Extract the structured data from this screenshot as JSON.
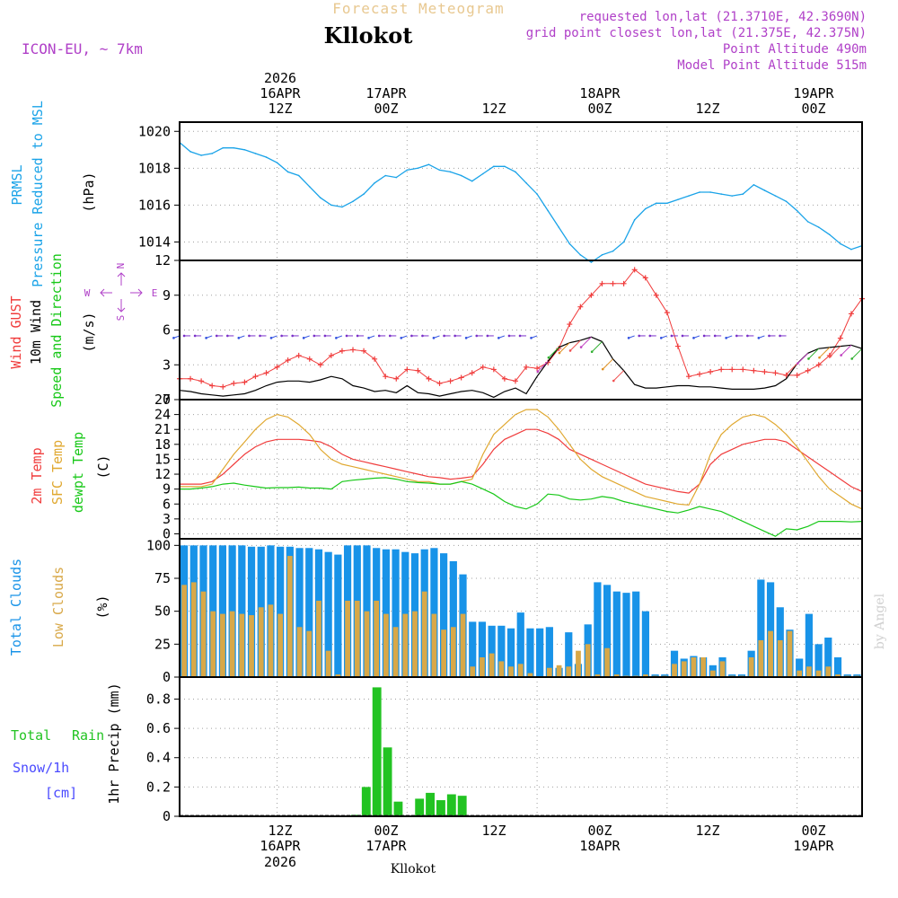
{
  "header": {
    "supertitle": "Forecast Meteogram",
    "location": "Kllokot",
    "model": "ICON-EU, ~ 7km",
    "info": [
      "requested lon,lat (21.3710E, 42.3690N)",
      "grid point closest lon,lat (21.375E, 42.375N)",
      "Point Altitude 490m",
      "Model Point Altitude 515m"
    ]
  },
  "axis_top": [
    "2026",
    "16APR",
    "12Z",
    "17APR",
    "00Z",
    "12Z",
    "18APR",
    "00Z",
    "12Z",
    "19APR",
    "00Z"
  ],
  "axis_bottom": [
    "12Z",
    "16APR",
    "2026",
    "00Z",
    "17APR",
    "12Z",
    "00Z",
    "18APR",
    "12Z",
    "00Z",
    "19APR"
  ],
  "footer_label": "Kllokot",
  "watermark": "by Angel",
  "colors": {
    "pressure": "#1aa3e8",
    "gust": "#f03c3c",
    "wind": "#000000",
    "temp2m": "#f03c3c",
    "sfc": "#e0a830",
    "dew": "#18c818",
    "total_cloud": "#1893e8",
    "low_cloud": "#d8a848",
    "rain": "#22c322",
    "snow": "#4a4aff",
    "title": "#000000",
    "supertitle": "#e8c890",
    "info": "#b040c8"
  },
  "panel_labels": {
    "pressure": [
      "PRMSL",
      "Pressure Reduced to MSL",
      "(hPa)"
    ],
    "wind": [
      "Wind GUST",
      "10m Wind",
      "Speed and Direction",
      "(m/s)"
    ],
    "compass": [
      "N",
      "S",
      "W",
      "E"
    ],
    "temp": [
      "2m Temp",
      "SFC Temp",
      "dewpt Temp",
      "(C)"
    ],
    "cloud": [
      "Total Clouds",
      "Low Clouds",
      "(%)"
    ],
    "precip": [
      "Total",
      "Rain",
      "Snow/1h",
      "[cm]",
      "1hr Precip (mm)"
    ]
  },
  "chart_data": [
    {
      "type": "line",
      "title": "PRMSL Pressure Reduced to MSL",
      "ylabel": "(hPa)",
      "ylim": [
        1013,
        1020.5
      ],
      "yticks": [
        1014,
        1016,
        1018,
        1020
      ],
      "xrange_hours": [
        -9,
        54
      ],
      "series": [
        {
          "name": "PRMSL",
          "x": [
            -9,
            -8,
            -7,
            -6,
            -5,
            -4,
            -3,
            -2,
            -1,
            0,
            1,
            2,
            3,
            4,
            5,
            6,
            7,
            8,
            9,
            10,
            11,
            12,
            13,
            14,
            15,
            16,
            17,
            18,
            19,
            20,
            21,
            22,
            23,
            24,
            25,
            26,
            27,
            28,
            29,
            30,
            31,
            32,
            33,
            34,
            35,
            36,
            37,
            38,
            39,
            40,
            41,
            42,
            43,
            44,
            45,
            46,
            47,
            48,
            49,
            50,
            51,
            52,
            53,
            54
          ],
          "values": [
            1019.4,
            1018.9,
            1018.7,
            1018.8,
            1019.1,
            1019.1,
            1019,
            1018.8,
            1018.6,
            1018.3,
            1017.8,
            1017.6,
            1017,
            1016.4,
            1016,
            1015.9,
            1016.2,
            1016.6,
            1017.2,
            1017.6,
            1017.5,
            1017.9,
            1018,
            1018.2,
            1017.9,
            1017.8,
            1017.6,
            1017.3,
            1017.7,
            1018.1,
            1018.1,
            1017.8,
            1017.2,
            1016.6,
            1015.7,
            1014.8,
            1013.9,
            1013.3,
            1012.9,
            1013.3,
            1013.5,
            1014,
            1015.2,
            1015.8,
            1016.1,
            1016.1,
            1016.3,
            1016.5,
            1016.7,
            1016.7,
            1016.6,
            1016.5,
            1016.6,
            1017.1,
            1016.8,
            1016.5,
            1016.2,
            1015.7,
            1015.1,
            1014.8,
            1014.4,
            1013.9,
            1013.6,
            1013.8
          ]
        }
      ]
    },
    {
      "type": "line",
      "title": "Wind GUST / 10m Wind Speed and Direction",
      "ylabel": "(m/s)",
      "ylim": [
        0,
        12
      ],
      "yticks": [
        0,
        3,
        6,
        9,
        12
      ],
      "series": [
        {
          "name": "Wind GUST",
          "values": [
            1.8,
            1.8,
            1.6,
            1.2,
            1.1,
            1.4,
            1.5,
            2,
            2.3,
            2.8,
            3.4,
            3.8,
            3.5,
            3,
            3.8,
            4.2,
            4.3,
            4.2,
            3.5,
            2,
            1.8,
            2.6,
            2.5,
            1.8,
            1.4,
            1.6,
            1.9,
            2.3,
            2.8,
            2.6,
            1.8,
            1.6,
            2.8,
            2.7,
            3.2,
            4.4,
            6.5,
            8,
            9,
            10,
            10,
            10,
            11.2,
            10.5,
            9,
            7.5,
            4.6,
            2,
            2.2,
            2.4,
            2.6,
            2.6,
            2.6,
            2.5,
            2.4,
            2.3,
            2.1,
            2.1,
            2.5,
            3,
            3.8,
            5.3,
            7.4,
            8.7
          ]
        },
        {
          "name": "10m Wind",
          "values": [
            0.8,
            0.7,
            0.5,
            0.4,
            0.3,
            0.4,
            0.5,
            0.8,
            1.2,
            1.5,
            1.6,
            1.6,
            1.5,
            1.7,
            2,
            1.8,
            1.2,
            1,
            0.7,
            0.8,
            0.6,
            1.2,
            0.6,
            0.5,
            0.3,
            0.5,
            0.7,
            0.8,
            0.6,
            0.2,
            0.7,
            1,
            0.5,
            2,
            3.3,
            4.5,
            4.9,
            5.1,
            5.4,
            5,
            3.5,
            2.5,
            1.3,
            1,
            1,
            1.1,
            1.2,
            1.2,
            1.1,
            1.1,
            1,
            0.9,
            0.9,
            0.9,
            1,
            1.2,
            1.8,
            3.1,
            4,
            4.4,
            4.5,
            4.6,
            4.7,
            4.4
          ]
        }
      ]
    },
    {
      "type": "line",
      "title": "2m Temp / SFC Temp / dewpt Temp",
      "ylabel": "(C)",
      "ylim": [
        -1,
        27
      ],
      "yticks": [
        0,
        3,
        6,
        9,
        12,
        15,
        18,
        21,
        24,
        27
      ],
      "series": [
        {
          "name": "2m Temp",
          "values": [
            10,
            10,
            10,
            10.5,
            12,
            14,
            16,
            17.5,
            18.5,
            19,
            19,
            19,
            18.8,
            18.5,
            17.5,
            16,
            15,
            14.5,
            14,
            13.5,
            13,
            12.5,
            12,
            11.5,
            11.3,
            11,
            11.2,
            11.5,
            14,
            17,
            19,
            20,
            21,
            21,
            20.2,
            19,
            17,
            16,
            15,
            14,
            13,
            12,
            11,
            10,
            9.5,
            9,
            8.5,
            8.2,
            10,
            14,
            16,
            17,
            18,
            18.5,
            19,
            19,
            18.5,
            17,
            15.5,
            14,
            12.5,
            11,
            9.5,
            8.5
          ]
        },
        {
          "name": "SFC Temp",
          "values": [
            9.5,
            9.5,
            9.5,
            10,
            13,
            16,
            18.5,
            21,
            23,
            24,
            23.5,
            22,
            20,
            17,
            15,
            14,
            13.5,
            13,
            12.5,
            12,
            11.5,
            11,
            10.5,
            10.5,
            10,
            10,
            10.5,
            11,
            16,
            20,
            22,
            24,
            25,
            25,
            23.5,
            21,
            18,
            15,
            13,
            11.5,
            10.5,
            9.5,
            8.5,
            7.5,
            7,
            6.5,
            6,
            5.8,
            10,
            16,
            20,
            22,
            23.5,
            24,
            23.5,
            22,
            20,
            17.5,
            14.5,
            11.5,
            9,
            7.5,
            6,
            5
          ]
        },
        {
          "name": "dewpt Temp",
          "values": [
            9,
            9,
            9.2,
            9.5,
            10,
            10.2,
            9.8,
            9.5,
            9.2,
            9.3,
            9.3,
            9.4,
            9.2,
            9.2,
            9,
            10.5,
            10.8,
            11,
            11.2,
            11.3,
            11,
            10.5,
            10.3,
            10.2,
            10,
            10,
            10.5,
            10,
            9,
            8,
            6.5,
            5.5,
            5,
            6,
            8,
            7.8,
            7,
            6.8,
            7,
            7.5,
            7.2,
            6.5,
            6,
            5.5,
            5,
            4.5,
            4.2,
            4.8,
            5.5,
            5,
            4.5,
            3.5,
            2.5,
            1.5,
            0.5,
            -0.5,
            1,
            0.8,
            1.5,
            2.5,
            2.5,
            2.5,
            2.4,
            2.5
          ]
        }
      ]
    },
    {
      "type": "bar",
      "title": "Total Clouds / Low Clouds",
      "ylabel": "(%)",
      "ylim": [
        0,
        105
      ],
      "yticks": [
        0,
        25,
        50,
        75,
        100
      ],
      "series": [
        {
          "name": "Total Clouds",
          "values": [
            100,
            100,
            100,
            100,
            100,
            100,
            100,
            99,
            99,
            100,
            99,
            99,
            98,
            98,
            97,
            95,
            93,
            100,
            100,
            100,
            98,
            97,
            97,
            95,
            94,
            97,
            98,
            94,
            88,
            78,
            42,
            42,
            39,
            39,
            37,
            49,
            37,
            37,
            38,
            7,
            34,
            10,
            40,
            72,
            70,
            65,
            64,
            65,
            50,
            2,
            2,
            20,
            14,
            16,
            15,
            9,
            15,
            2,
            2,
            20,
            74,
            72,
            53,
            36,
            14,
            48,
            25,
            30,
            15,
            2,
            2
          ]
        },
        {
          "name": "Low Clouds",
          "values": [
            70,
            72,
            65,
            50,
            48,
            50,
            48,
            47,
            53,
            55,
            48,
            92,
            38,
            35,
            58,
            20,
            2,
            58,
            58,
            50,
            58,
            48,
            38,
            48,
            50,
            65,
            48,
            36,
            38,
            48,
            8,
            15,
            18,
            12,
            8,
            10,
            3,
            0,
            7,
            9,
            8,
            20,
            25,
            2,
            22,
            2,
            1,
            1,
            2,
            1,
            1,
            10,
            12,
            15,
            15,
            5,
            12,
            1,
            1,
            15,
            28,
            35,
            28,
            35,
            5,
            8,
            5,
            8,
            2,
            1,
            1
          ]
        }
      ]
    },
    {
      "type": "bar",
      "title": "Total Rain / Snow 1h",
      "ylabel": "1hr Precip (mm)",
      "ylim": [
        0,
        0.95
      ],
      "yticks": [
        0,
        0.2,
        0.4,
        0.6,
        0.8
      ],
      "series": [
        {
          "name": "Total Rain",
          "values": [
            0,
            0,
            0,
            0,
            0,
            0,
            0,
            0,
            0,
            0,
            0,
            0,
            0,
            0,
            0,
            0,
            0.01,
            0.2,
            0.88,
            0.47,
            0.1,
            0,
            0.12,
            0.16,
            0.11,
            0.15,
            0.14,
            0,
            0,
            0,
            0,
            0,
            0,
            0,
            0,
            0,
            0,
            0,
            0,
            0,
            0,
            0,
            0,
            0,
            0,
            0,
            0,
            0,
            0,
            0,
            0,
            0,
            0,
            0,
            0,
            0,
            0,
            0,
            0,
            0,
            0,
            0,
            0,
            0
          ]
        }
      ]
    }
  ]
}
